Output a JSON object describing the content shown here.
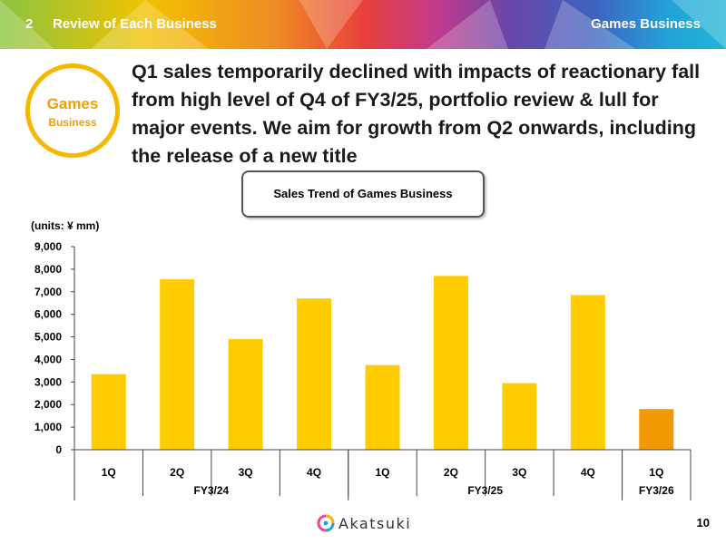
{
  "header": {
    "section_number": "2",
    "section_title": "Review of Each Business",
    "right_title": "Games Business"
  },
  "badge": {
    "title": "Games",
    "subtitle": "Business"
  },
  "headline": "Q1 sales temporarily declined with impacts of reactionary fall from high level of Q4 of FY3/25,  portfolio review & lull for major events.  We aim for growth from Q2 onwards, including the release of a new title",
  "chart_title": "Sales Trend of Games Business",
  "units": "(units: ¥ mm)",
  "colors": {
    "bar": "#ffcc00",
    "bar_highlight": "#f39800"
  },
  "chart_data": {
    "type": "bar",
    "title": "Sales Trend of Games Business",
    "ylabel": "(units: ¥ mm)",
    "ylim": [
      0,
      9000
    ],
    "yticks": [
      "0",
      "1,000",
      "2,000",
      "3,000",
      "4,000",
      "5,000",
      "6,000",
      "7,000",
      "8,000",
      "9,000"
    ],
    "categories": [
      "1Q",
      "2Q",
      "3Q",
      "4Q",
      "1Q",
      "2Q",
      "3Q",
      "4Q",
      "1Q"
    ],
    "values": [
      3350,
      7550,
      4900,
      6700,
      3750,
      7700,
      2950,
      6850,
      1800
    ],
    "groups": [
      {
        "label": "FY3/24",
        "count": 4
      },
      {
        "label": "FY3/25",
        "count": 4
      },
      {
        "label": "FY3/26",
        "count": 1
      }
    ],
    "highlight_index": 8,
    "grid": false,
    "legend": "none"
  },
  "footer": {
    "brand": "Akatsuki",
    "page_number": "10"
  },
  "icons": {
    "logo": "akatsuki-logo-icon"
  }
}
